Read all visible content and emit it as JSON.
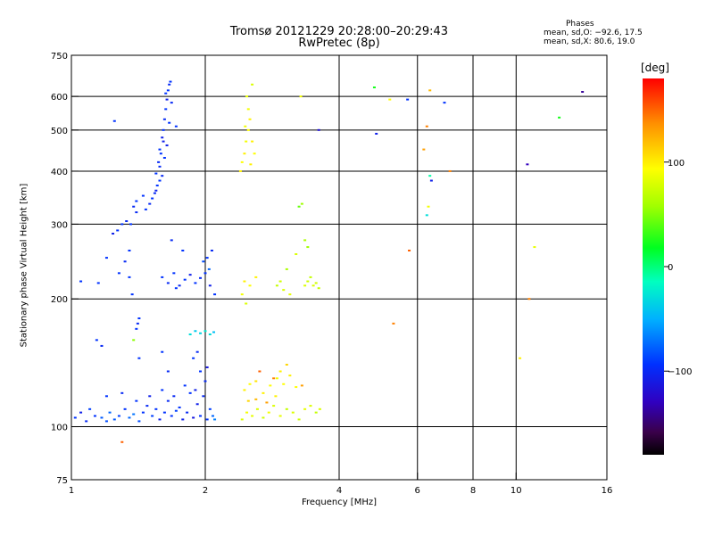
{
  "title": "Tromsø 20121229 20:28:00–20:29:43",
  "subtitle": "RwPretec (8p)",
  "stats": {
    "header": "Phases",
    "o_mode": "mean, sd,O: −92.6, 17.5",
    "x_mode": "mean, sd,X:  80.6, 19.0"
  },
  "colorbar": {
    "label": "[deg]",
    "ticks": [
      {
        "value": 100,
        "label": "100"
      },
      {
        "value": 0,
        "label": "0"
      },
      {
        "value": -100,
        "label": "−100"
      }
    ],
    "range": [
      -180,
      180
    ]
  },
  "chart_data": {
    "type": "scatter",
    "xlabel": "Frequency [MHz]",
    "ylabel": "Stationary phase Virtual Height [km]",
    "x_scale": "log",
    "xlim": [
      1,
      16
    ],
    "x_ticks": [
      {
        "value": 1,
        "label": "1"
      },
      {
        "value": 2,
        "label": "2"
      },
      {
        "value": 4,
        "label": "4"
      },
      {
        "value": 6,
        "label": "6"
      },
      {
        "value": 8,
        "label": "8"
      },
      {
        "value": 10,
        "label": "10"
      },
      {
        "value": 16,
        "label": "16"
      }
    ],
    "y_scale": "log",
    "ylim": [
      75,
      750
    ],
    "y_ticks": [
      {
        "value": 75,
        "label": "75"
      },
      {
        "value": 100,
        "label": "100"
      },
      {
        "value": 200,
        "label": "200"
      },
      {
        "value": 300,
        "label": "300"
      },
      {
        "value": 400,
        "label": "400"
      },
      {
        "value": 500,
        "label": "500"
      },
      {
        "value": 600,
        "label": "600"
      },
      {
        "value": 750,
        "label": "750"
      }
    ],
    "grid_x": [
      2,
      4,
      6,
      8,
      10
    ],
    "grid_y": [
      100,
      200,
      300,
      400,
      500,
      600
    ],
    "color_by": "phase [deg]",
    "points": [
      [
        1.02,
        105,
        -100
      ],
      [
        1.05,
        108,
        -110
      ],
      [
        1.08,
        103,
        -105
      ],
      [
        1.1,
        110,
        -95
      ],
      [
        1.13,
        106,
        -100
      ],
      [
        1.17,
        105,
        -85
      ],
      [
        1.2,
        103,
        -90
      ],
      [
        1.22,
        108,
        -80
      ],
      [
        1.25,
        104,
        -85
      ],
      [
        1.28,
        106,
        -95
      ],
      [
        1.32,
        110,
        -100
      ],
      [
        1.35,
        105,
        -80
      ],
      [
        1.38,
        107,
        -75
      ],
      [
        1.42,
        103,
        -90
      ],
      [
        1.45,
        108,
        -100
      ],
      [
        1.48,
        112,
        -105
      ],
      [
        1.52,
        106,
        -95
      ],
      [
        1.55,
        110,
        -100
      ],
      [
        1.58,
        104,
        -110
      ],
      [
        1.62,
        108,
        -100
      ],
      [
        1.65,
        115,
        -105
      ],
      [
        1.68,
        106,
        -100
      ],
      [
        1.72,
        109,
        -95
      ],
      [
        1.75,
        111,
        -100
      ],
      [
        1.78,
        104,
        -110
      ],
      [
        1.82,
        108,
        -105
      ],
      [
        1.85,
        120,
        -100
      ],
      [
        1.88,
        105,
        -115
      ],
      [
        1.92,
        113,
        -110
      ],
      [
        1.95,
        106,
        -100
      ],
      [
        1.98,
        118,
        -105
      ],
      [
        2.02,
        104,
        -100
      ],
      [
        2.05,
        110,
        -95
      ],
      [
        2.08,
        106,
        -80
      ],
      [
        2.1,
        104,
        -70
      ],
      [
        1.2,
        118,
        -100
      ],
      [
        1.3,
        120,
        -105
      ],
      [
        1.4,
        115,
        -100
      ],
      [
        1.5,
        118,
        -110
      ],
      [
        1.6,
        122,
        -100
      ],
      [
        1.7,
        118,
        -105
      ],
      [
        1.8,
        125,
        -100
      ],
      [
        1.9,
        122,
        -110
      ],
      [
        2.0,
        128,
        -105
      ],
      [
        1.95,
        135,
        -100
      ],
      [
        2.02,
        138,
        -115
      ],
      [
        1.88,
        145,
        -100
      ],
      [
        1.92,
        150,
        -105
      ],
      [
        1.55,
        395,
        -100
      ],
      [
        1.57,
        420,
        -105
      ],
      [
        1.58,
        450,
        -100
      ],
      [
        1.6,
        480,
        -110
      ],
      [
        1.61,
        500,
        -100
      ],
      [
        1.62,
        530,
        -105
      ],
      [
        1.63,
        560,
        -100
      ],
      [
        1.64,
        590,
        -110
      ],
      [
        1.65,
        620,
        -100
      ],
      [
        1.66,
        640,
        -105
      ],
      [
        1.56,
        370,
        -100
      ],
      [
        1.54,
        355,
        -105
      ],
      [
        1.52,
        345,
        -100
      ],
      [
        1.5,
        335,
        -105
      ],
      [
        1.47,
        325,
        -100
      ],
      [
        1.63,
        610,
        -100
      ],
      [
        1.61,
        470,
        -110
      ],
      [
        1.59,
        440,
        -100
      ],
      [
        1.58,
        410,
        -105
      ],
      [
        1.67,
        650,
        -100
      ],
      [
        1.68,
        580,
        -105
      ],
      [
        1.66,
        520,
        -100
      ],
      [
        1.64,
        460,
        -110
      ],
      [
        1.62,
        430,
        -100
      ],
      [
        1.6,
        390,
        -105
      ],
      [
        1.58,
        380,
        -100
      ],
      [
        1.55,
        360,
        -110
      ],
      [
        1.72,
        510,
        -100
      ],
      [
        1.3,
        300,
        -100
      ],
      [
        1.33,
        305,
        -105
      ],
      [
        1.36,
        300,
        -100
      ],
      [
        1.27,
        290,
        -100
      ],
      [
        1.24,
        285,
        -110
      ],
      [
        1.4,
        340,
        -100
      ],
      [
        1.38,
        330,
        -105
      ],
      [
        1.45,
        350,
        -100
      ],
      [
        1.4,
        320,
        -105
      ],
      [
        1.6,
        225,
        -100
      ],
      [
        1.65,
        218,
        -105
      ],
      [
        1.7,
        230,
        -100
      ],
      [
        1.75,
        215,
        -105
      ],
      [
        1.8,
        222,
        -100
      ],
      [
        1.85,
        228,
        -110
      ],
      [
        1.9,
        218,
        -100
      ],
      [
        1.95,
        224,
        -105
      ],
      [
        2.0,
        230,
        -100
      ],
      [
        2.05,
        215,
        -110
      ],
      [
        2.02,
        250,
        -100
      ],
      [
        2.07,
        260,
        -105
      ],
      [
        2.1,
        205,
        -100
      ],
      [
        1.78,
        260,
        -100
      ],
      [
        1.68,
        275,
        -105
      ],
      [
        1.98,
        245,
        -90
      ],
      [
        2.04,
        235,
        -80
      ],
      [
        1.72,
        212,
        -100
      ],
      [
        1.85,
        165,
        -30
      ],
      [
        1.9,
        168,
        -40
      ],
      [
        1.95,
        166,
        -35
      ],
      [
        2.0,
        168,
        -25
      ],
      [
        2.05,
        165,
        -30
      ],
      [
        2.09,
        167,
        -45
      ],
      [
        1.4,
        170,
        -100
      ],
      [
        1.41,
        175,
        -105
      ],
      [
        1.42,
        180,
        -100
      ],
      [
        1.35,
        225,
        -100
      ],
      [
        1.6,
        150,
        -100
      ],
      [
        1.38,
        160,
        50
      ],
      [
        1.37,
        205,
        -100
      ],
      [
        1.15,
        218,
        -100
      ],
      [
        1.05,
        220,
        -100
      ],
      [
        1.28,
        230,
        -100
      ],
      [
        1.32,
        245,
        -105
      ],
      [
        1.35,
        260,
        -100
      ],
      [
        1.2,
        250,
        -100
      ],
      [
        1.25,
        525,
        -100
      ],
      [
        1.14,
        160,
        -100
      ],
      [
        1.17,
        155,
        -105
      ],
      [
        1.42,
        145,
        -100
      ],
      [
        1.65,
        135,
        -105
      ],
      [
        2.42,
        104,
        80
      ],
      [
        2.48,
        108,
        90
      ],
      [
        2.55,
        106,
        85
      ],
      [
        2.62,
        110,
        80
      ],
      [
        2.7,
        105,
        75
      ],
      [
        2.78,
        108,
        90
      ],
      [
        2.85,
        112,
        80
      ],
      [
        2.95,
        106,
        85
      ],
      [
        3.05,
        110,
        70
      ],
      [
        3.15,
        108,
        80
      ],
      [
        3.25,
        104,
        75
      ],
      [
        3.35,
        110,
        85
      ],
      [
        3.45,
        112,
        80
      ],
      [
        3.55,
        108,
        70
      ],
      [
        3.62,
        110,
        80
      ],
      [
        2.45,
        122,
        100
      ],
      [
        2.52,
        126,
        95
      ],
      [
        2.6,
        128,
        105
      ],
      [
        2.7,
        120,
        100
      ],
      [
        2.8,
        125,
        95
      ],
      [
        2.9,
        130,
        90
      ],
      [
        3.0,
        126,
        95
      ],
      [
        3.1,
        132,
        100
      ],
      [
        3.2,
        124,
        95
      ],
      [
        2.88,
        118,
        100
      ],
      [
        2.5,
        115,
        110
      ],
      [
        2.6,
        116,
        120
      ],
      [
        2.75,
        114,
        130
      ],
      [
        2.65,
        135,
        150
      ],
      [
        2.85,
        130,
        140
      ],
      [
        3.05,
        140,
        110
      ],
      [
        2.95,
        135,
        100
      ],
      [
        2.4,
        400,
        100
      ],
      [
        2.42,
        420,
        95
      ],
      [
        2.45,
        440,
        100
      ],
      [
        2.47,
        470,
        90
      ],
      [
        2.5,
        500,
        95
      ],
      [
        2.52,
        530,
        100
      ],
      [
        2.5,
        560,
        90
      ],
      [
        2.48,
        600,
        85
      ],
      [
        2.55,
        470,
        100
      ],
      [
        2.58,
        440,
        95
      ],
      [
        2.46,
        510,
        90
      ],
      [
        2.53,
        415,
        100
      ],
      [
        2.55,
        640,
        80
      ],
      [
        2.45,
        220,
        100
      ],
      [
        2.52,
        215,
        95
      ],
      [
        2.6,
        225,
        100
      ],
      [
        2.47,
        195,
        80
      ],
      [
        2.42,
        205,
        90
      ],
      [
        2.9,
        215,
        70
      ],
      [
        2.95,
        220,
        75
      ],
      [
        3.0,
        210,
        80
      ],
      [
        3.1,
        205,
        85
      ],
      [
        3.05,
        235,
        60
      ],
      [
        3.25,
        330,
        40
      ],
      [
        3.3,
        335,
        55
      ],
      [
        3.28,
        600,
        90
      ],
      [
        3.35,
        215,
        80
      ],
      [
        3.4,
        220,
        75
      ],
      [
        3.45,
        225,
        70
      ],
      [
        3.5,
        215,
        80
      ],
      [
        3.55,
        218,
        75
      ],
      [
        3.6,
        212,
        70
      ],
      [
        3.35,
        275,
        60
      ],
      [
        3.4,
        265,
        55
      ],
      [
        3.2,
        255,
        80
      ],
      [
        4.8,
        630,
        20
      ],
      [
        4.85,
        490,
        -110
      ],
      [
        5.2,
        590,
        95
      ],
      [
        5.3,
        175,
        140
      ],
      [
        5.7,
        590,
        -100
      ],
      [
        5.75,
        260,
        150
      ],
      [
        6.2,
        450,
        130
      ],
      [
        6.3,
        510,
        140
      ],
      [
        6.4,
        390,
        -10
      ],
      [
        6.45,
        380,
        -110
      ],
      [
        6.3,
        315,
        -30
      ],
      [
        6.35,
        330,
        90
      ],
      [
        6.4,
        620,
        120
      ],
      [
        6.9,
        580,
        -100
      ],
      [
        7.1,
        400,
        140
      ],
      [
        10.6,
        415,
        -130
      ],
      [
        10.7,
        200,
        140
      ],
      [
        11.0,
        265,
        85
      ],
      [
        12.5,
        535,
        20
      ],
      [
        14.1,
        615,
        -140
      ],
      [
        10.2,
        145,
        100
      ],
      [
        1.3,
        92,
        150
      ],
      [
        3.6,
        500,
        -120
      ],
      [
        3.3,
        125,
        130
      ]
    ]
  }
}
